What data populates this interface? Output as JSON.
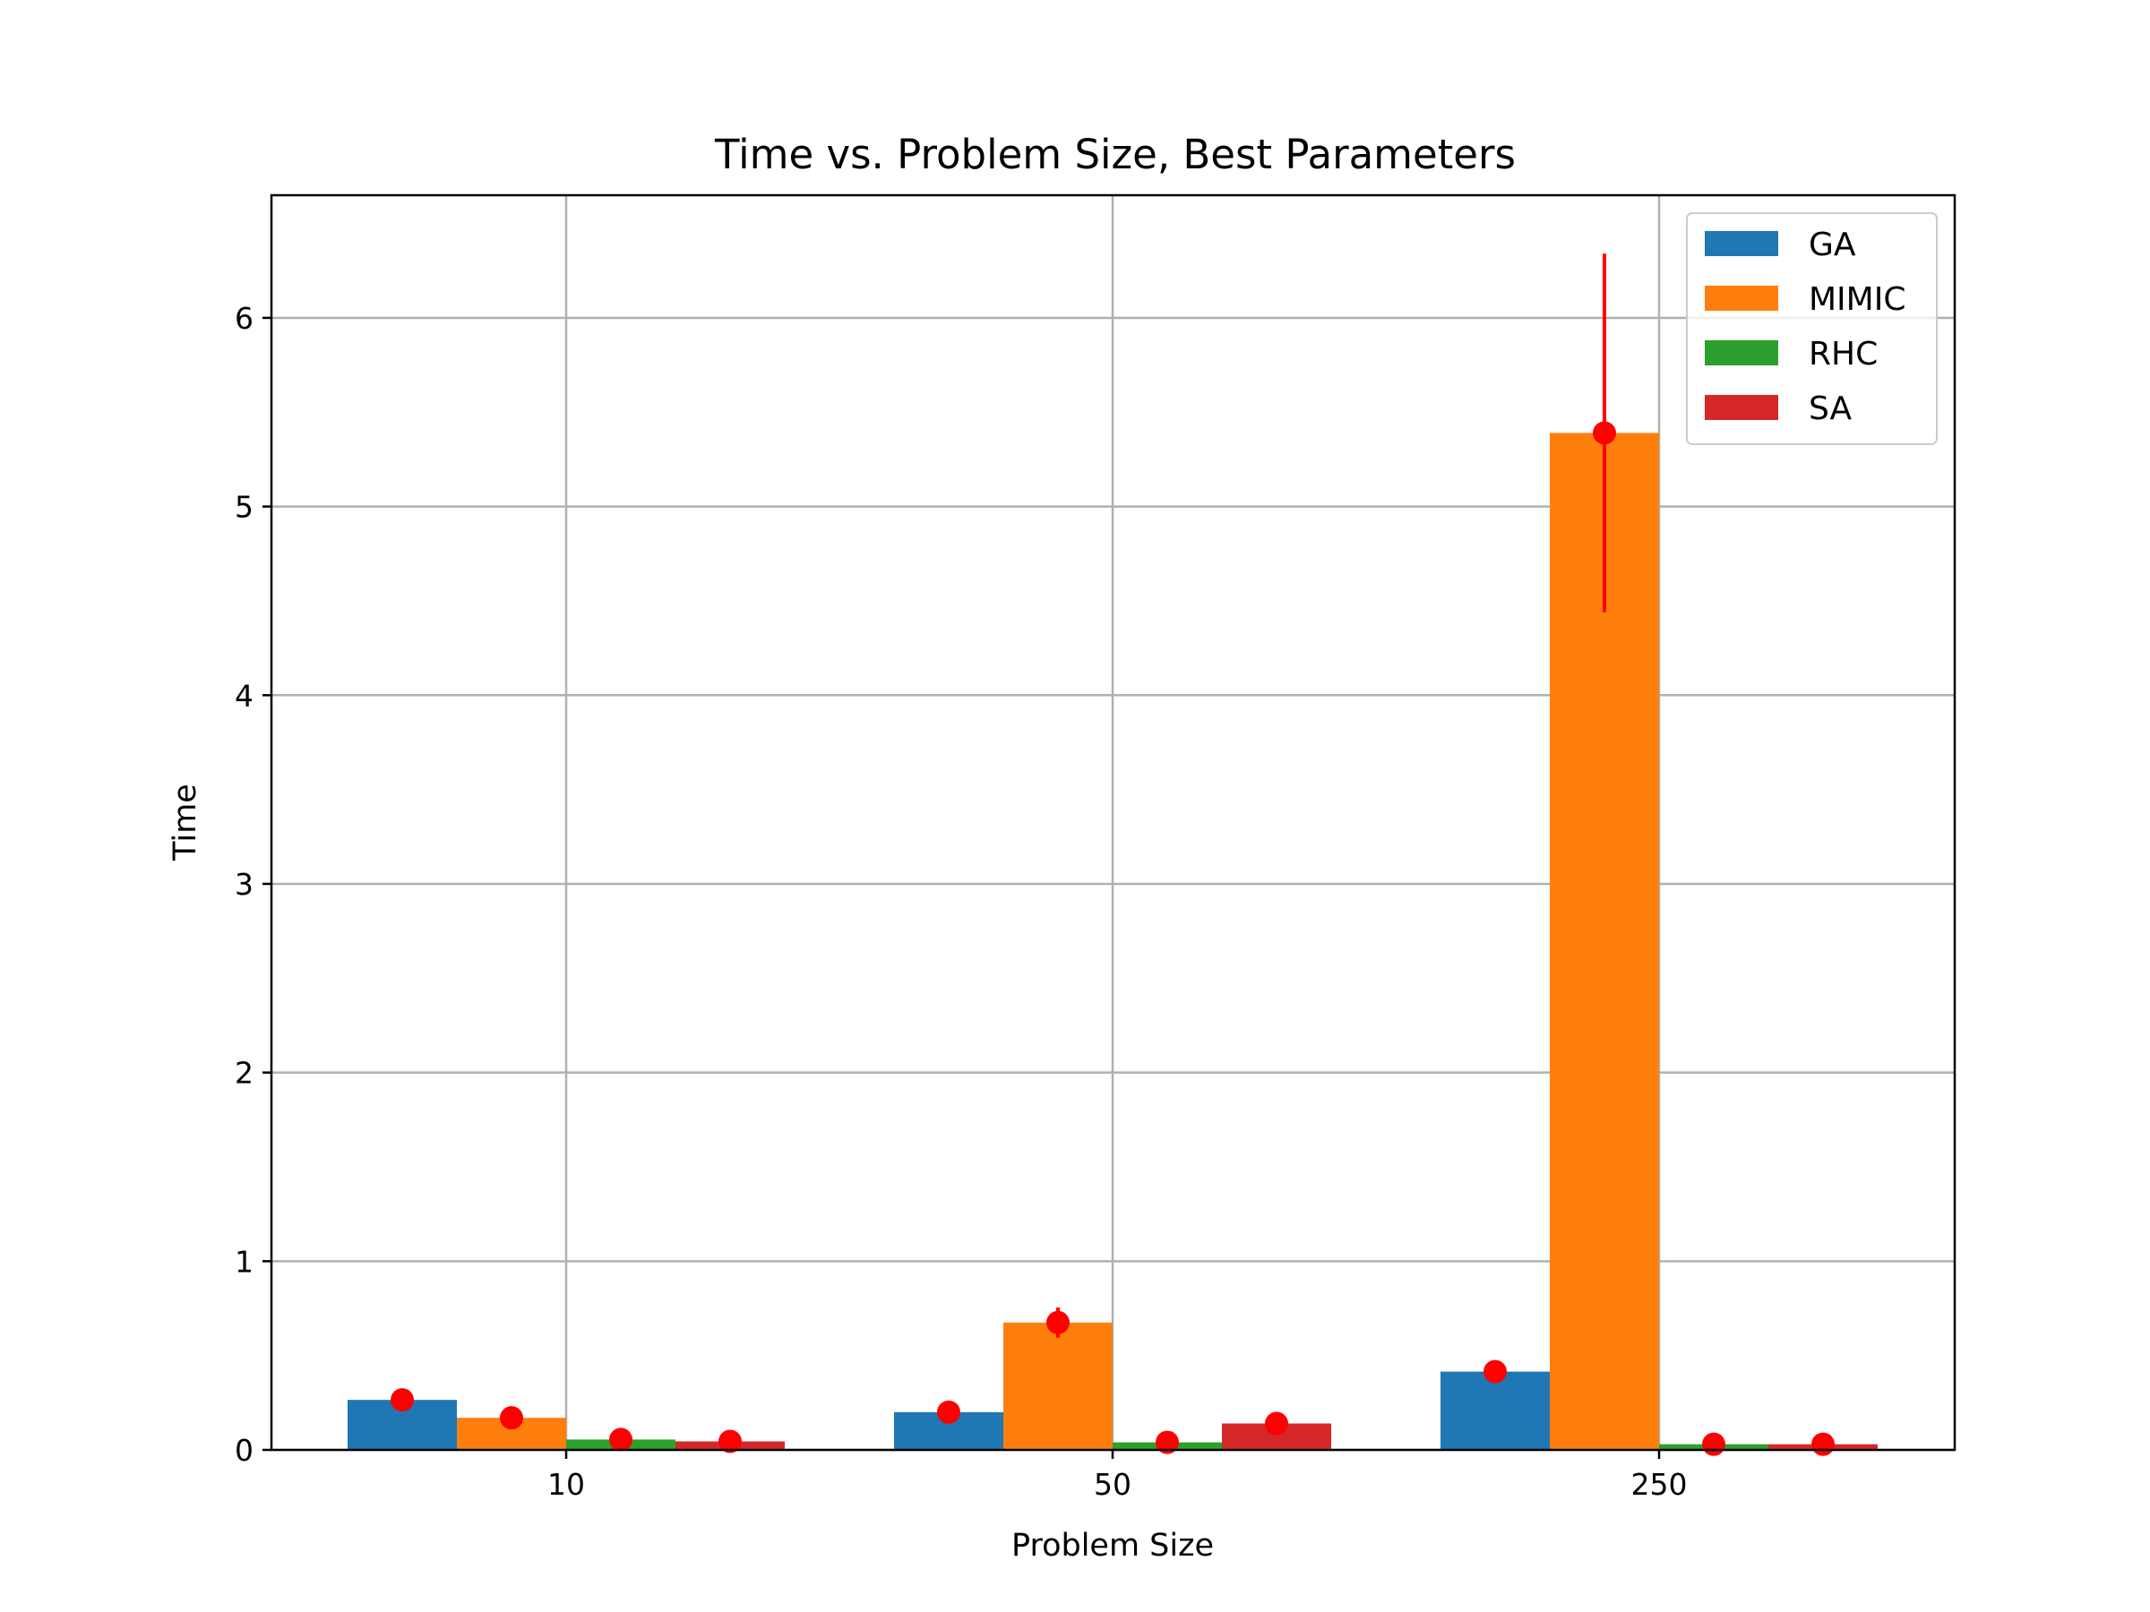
{
  "chart_data": {
    "type": "bar",
    "title": "Time vs. Problem Size, Best Parameters",
    "xlabel": "Problem Size",
    "ylabel": "Time",
    "categories": [
      "10",
      "50",
      "250"
    ],
    "ylim": [
      0,
      6.65
    ],
    "yticks": [
      0,
      1,
      2,
      3,
      4,
      5,
      6
    ],
    "grid": true,
    "legend_position": "top-right",
    "series": [
      {
        "name": "GA",
        "color": "#1f77b4",
        "values": [
          0.265,
          0.2,
          0.415
        ],
        "errors": [
          0.01,
          0.01,
          0.02
        ]
      },
      {
        "name": "MIMIC",
        "color": "#ff7f0e",
        "values": [
          0.17,
          0.675,
          5.39
        ],
        "errors": [
          0.01,
          0.08,
          0.95
        ]
      },
      {
        "name": "RHC",
        "color": "#2ca02c",
        "values": [
          0.055,
          0.04,
          0.03
        ],
        "errors": [
          0.005,
          0.005,
          0.005
        ]
      },
      {
        "name": "SA",
        "color": "#d62728",
        "values": [
          0.045,
          0.14,
          0.03
        ],
        "errors": [
          0.005,
          0.01,
          0.005
        ]
      }
    ],
    "error_marker_color": "#ff0000"
  }
}
